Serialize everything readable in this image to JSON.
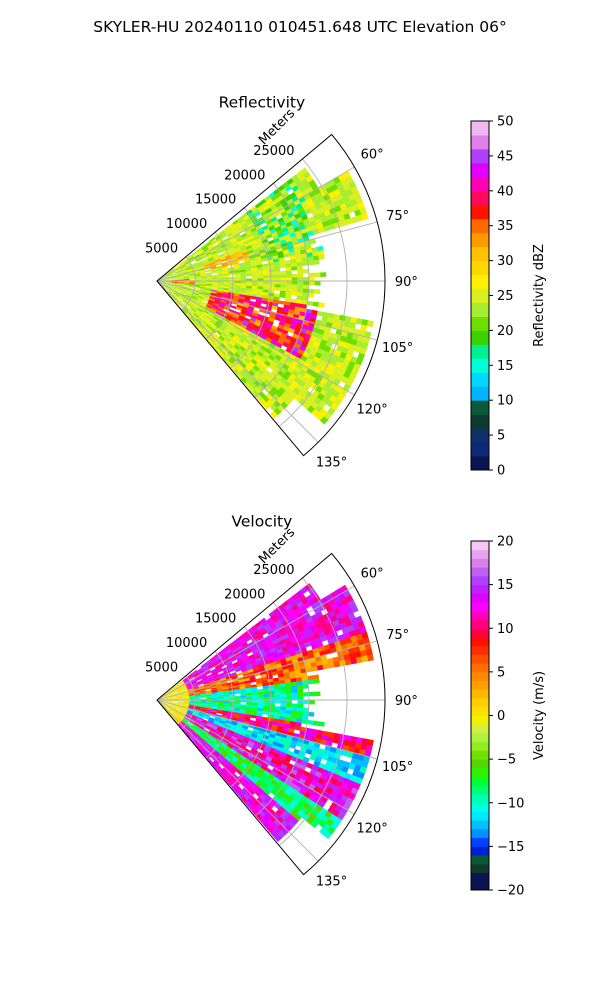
{
  "figure": {
    "suptitle": "SKYLER-HU  20240110  010451.648 UTC Elevation 06°"
  },
  "chart_data": [
    {
      "type": "polar-sector-heatmap",
      "title": "Reflectivity",
      "radial_label": "Meters",
      "radial_ticks": [
        "5000",
        "10000",
        "15000",
        "20000",
        "25000"
      ],
      "radial_values": [
        5000,
        10000,
        15000,
        20000,
        25000
      ],
      "radial_max": 30000,
      "azimuth_range_deg": [
        50,
        140
      ],
      "azimuth_ticks": [
        "60°",
        "75°",
        "90°",
        "105°",
        "120°",
        "135°"
      ],
      "azimuth_values": [
        60,
        75,
        90,
        105,
        120,
        135
      ],
      "grid": true,
      "colorbar": {
        "label": "Reflectivity dBZ",
        "min": 0,
        "max": 50,
        "ticks": [
          "0",
          "5",
          "10",
          "15",
          "20",
          "25",
          "30",
          "35",
          "40",
          "45",
          "50"
        ],
        "tick_values": [
          0,
          5,
          10,
          15,
          20,
          25,
          30,
          35,
          40,
          45,
          50
        ]
      },
      "field_description": "Mostly 20-30 dBZ echoes; bands of 35-45 dBZ near 100-115° and 8-20 km range"
    },
    {
      "type": "polar-sector-heatmap",
      "title": "Velocity",
      "radial_label": "Meters",
      "radial_ticks": [
        "5000",
        "10000",
        "15000",
        "20000",
        "25000"
      ],
      "radial_values": [
        5000,
        10000,
        15000,
        20000,
        25000
      ],
      "radial_max": 30000,
      "azimuth_range_deg": [
        50,
        140
      ],
      "azimuth_ticks": [
        "60°",
        "75°",
        "90°",
        "105°",
        "120°",
        "135°"
      ],
      "azimuth_values": [
        60,
        75,
        90,
        105,
        120,
        135
      ],
      "grid": true,
      "colorbar": {
        "label": "Velocity (m/s)",
        "min": -20,
        "max": 20,
        "ticks": [
          "−20",
          "−15",
          "−10",
          "−5",
          "0",
          "5",
          "10",
          "15",
          "20"
        ],
        "tick_values": [
          -20,
          -15,
          -10,
          -5,
          0,
          5,
          10,
          15,
          20
        ]
      },
      "field_description": "Outbound 10-18 m/s near 60-80° and 110-130°; inbound -5 to -12 m/s near 85-110°"
    }
  ]
}
